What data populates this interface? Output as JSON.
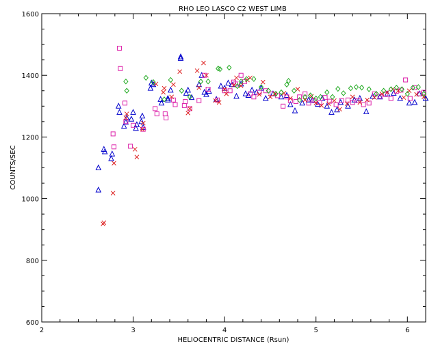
{
  "chart_data": {
    "type": "scatter",
    "title": "RHO LEO   LASCO C2 WEST LIMB",
    "xlabel": "HELIOCENTRIC DISTANCE (Rsun)",
    "ylabel": "COUNTS/SEC",
    "xlim": [
      2,
      6.2
    ],
    "ylim": [
      600,
      1600
    ],
    "xticks": [
      2,
      3,
      4,
      5,
      6
    ],
    "yticks": [
      600,
      800,
      1000,
      1200,
      1400,
      1600
    ],
    "grid": false,
    "colors": {
      "triangle": "#0000cc",
      "square": "#dd22aa",
      "cross": "#dd2222",
      "diamond": "#22aa22"
    },
    "series": [
      {
        "marker": "triangle",
        "color": "#0000cc",
        "x": [
          2.62,
          2.62,
          2.68,
          2.69,
          2.76,
          2.77,
          2.84,
          2.85,
          2.9,
          2.92,
          2.93,
          2.98,
          3.0,
          3.03,
          3.04,
          3.09,
          3.1,
          3.11,
          3.19,
          3.2,
          3.22,
          3.3,
          3.31,
          3.38,
          3.38,
          3.41,
          3.52,
          3.52,
          3.58,
          3.6,
          3.64,
          3.72,
          3.75,
          3.78,
          3.8,
          3.83,
          3.91,
          3.96,
          4.0,
          4.04,
          4.08,
          4.13,
          4.18,
          4.23,
          4.26,
          4.3,
          4.35,
          4.4,
          4.45,
          4.53,
          4.62,
          4.68,
          4.72,
          4.77,
          4.85,
          4.92,
          4.96,
          5.02,
          5.07,
          5.12,
          5.17,
          5.23,
          5.27,
          5.35,
          5.42,
          5.48,
          5.55,
          5.62,
          5.7,
          5.78,
          5.85,
          5.92,
          6.02,
          6.08,
          6.13,
          6.2
        ],
        "y": [
          1100,
          1028,
          1160,
          1152,
          1130,
          1145,
          1300,
          1280,
          1235,
          1248,
          1262,
          1258,
          1280,
          1228,
          1240,
          1250,
          1268,
          1231,
          1358,
          1375,
          1370,
          1322,
          1310,
          1325,
          1320,
          1352,
          1460,
          1455,
          1342,
          1352,
          1328,
          1370,
          1400,
          1345,
          1338,
          1348,
          1322,
          1365,
          1358,
          1375,
          1370,
          1332,
          1372,
          1340,
          1335,
          1352,
          1345,
          1358,
          1325,
          1340,
          1330,
          1335,
          1305,
          1285,
          1310,
          1320,
          1320,
          1306,
          1325,
          1300,
          1280,
          1288,
          1312,
          1300,
          1320,
          1325,
          1282,
          1332,
          1330,
          1340,
          1342,
          1325,
          1310,
          1312,
          1340,
          1325
        ]
      },
      {
        "marker": "square",
        "color": "#dd22aa",
        "x": [
          2.78,
          2.79,
          2.85,
          2.86,
          2.91,
          2.92,
          2.97,
          3.0,
          3.11,
          3.24,
          3.26,
          3.35,
          3.36,
          3.44,
          3.46,
          3.56,
          3.57,
          3.62,
          3.72,
          3.78,
          3.82,
          3.92,
          4.0,
          4.06,
          4.1,
          4.12,
          4.18,
          4.22,
          4.28,
          4.32,
          4.38,
          4.45,
          4.52,
          4.58,
          4.64,
          4.68,
          4.72,
          4.78,
          4.82,
          4.88,
          4.92,
          4.98,
          5.04,
          5.1,
          5.15,
          5.22,
          5.28,
          5.35,
          5.4,
          5.46,
          5.52,
          5.58,
          5.64,
          5.7,
          5.76,
          5.82,
          5.88,
          5.93,
          5.98,
          6.03,
          6.08,
          6.13,
          6.18
        ],
        "y": [
          1210,
          1168,
          1488,
          1422,
          1310,
          1250,
          1170,
          1238,
          1225,
          1292,
          1275,
          1275,
          1262,
          1320,
          1305,
          1302,
          1315,
          1292,
          1318,
          1400,
          1355,
          1320,
          1350,
          1350,
          1378,
          1372,
          1400,
          1380,
          1340,
          1330,
          1345,
          1350,
          1340,
          1334,
          1300,
          1330,
          1318,
          1315,
          1330,
          1340,
          1310,
          1318,
          1312,
          1328,
          1316,
          1305,
          1318,
          1320,
          1312,
          1318,
          1305,
          1310,
          1340,
          1332,
          1338,
          1325,
          1348,
          1352,
          1385,
          1325,
          1360,
          1340,
          1345
        ]
      },
      {
        "marker": "cross",
        "color": "#dd2222",
        "x": [
          2.67,
          2.68,
          2.78,
          2.79,
          2.92,
          2.93,
          3.02,
          3.04,
          3.1,
          3.11,
          3.25,
          3.33,
          3.34,
          3.42,
          3.44,
          3.51,
          3.6,
          3.62,
          3.7,
          3.72,
          3.77,
          3.8,
          3.9,
          3.94,
          4.0,
          4.02,
          4.1,
          4.13,
          4.18,
          4.25,
          4.28,
          4.38,
          4.42,
          4.5,
          4.55,
          4.65,
          4.72,
          4.8,
          4.88,
          4.95,
          5.0,
          5.06,
          5.14,
          5.2,
          5.26,
          5.34,
          5.4,
          5.48,
          5.56,
          5.64,
          5.72,
          5.78,
          5.84,
          5.9,
          5.96,
          6.02,
          6.1,
          6.18
        ],
        "y": [
          918,
          922,
          1018,
          1115,
          1262,
          1275,
          1160,
          1135,
          1225,
          1245,
          1372,
          1345,
          1358,
          1330,
          1370,
          1412,
          1278,
          1292,
          1415,
          1360,
          1440,
          1400,
          1318,
          1312,
          1355,
          1340,
          1368,
          1392,
          1366,
          1385,
          1392,
          1338,
          1378,
          1330,
          1340,
          1342,
          1325,
          1355,
          1320,
          1332,
          1310,
          1302,
          1308,
          1318,
          1290,
          1308,
          1330,
          1312,
          1320,
          1328,
          1340,
          1345,
          1355,
          1350,
          1328,
          1350,
          1338,
          1330
        ]
      },
      {
        "marker": "diamond",
        "color": "#22aa22",
        "x": [
          2.92,
          2.93,
          3.14,
          3.22,
          3.34,
          3.41,
          3.53,
          3.62,
          3.74,
          3.82,
          3.93,
          3.95,
          4.05,
          4.14,
          4.18,
          4.24,
          4.32,
          4.4,
          4.48,
          4.56,
          4.62,
          4.68,
          4.7,
          4.76,
          4.82,
          4.88,
          4.94,
          5.0,
          5.05,
          5.12,
          5.18,
          5.24,
          5.3,
          5.38,
          5.44,
          5.5,
          5.58,
          5.66,
          5.74,
          5.82,
          5.88,
          5.94,
          6.0,
          6.06,
          6.12,
          6.18
        ],
        "y": [
          1380,
          1350,
          1392,
          1378,
          1322,
          1385,
          1350,
          1330,
          1380,
          1380,
          1422,
          1420,
          1425,
          1365,
          1380,
          1388,
          1388,
          1362,
          1350,
          1340,
          1345,
          1370,
          1382,
          1350,
          1320,
          1330,
          1335,
          1325,
          1330,
          1345,
          1330,
          1356,
          1342,
          1358,
          1362,
          1360,
          1355,
          1340,
          1350,
          1355,
          1360,
          1355,
          1340,
          1360,
          1362,
          1340
        ]
      }
    ]
  }
}
